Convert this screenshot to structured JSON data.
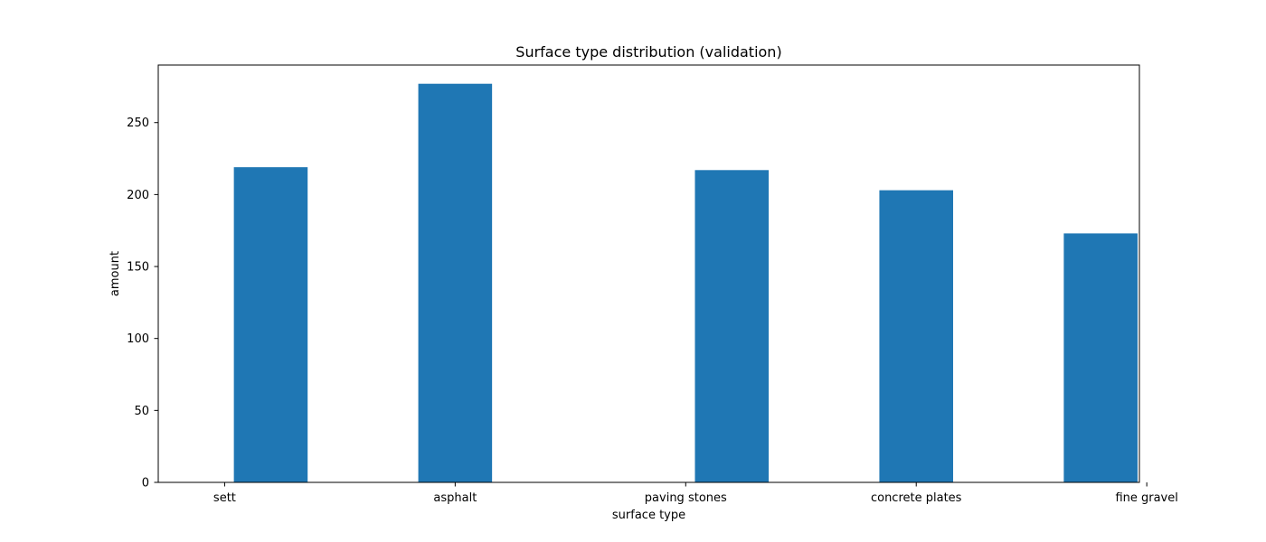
{
  "chart_data": {
    "type": "bar",
    "title": "Surface type distribution (validation)",
    "xlabel": "surface type",
    "ylabel": "amount",
    "ylim": [
      0,
      290
    ],
    "yticks": [
      0,
      50,
      100,
      150,
      200,
      250
    ],
    "xlim": [
      -0.36,
      4.96
    ],
    "grid": false,
    "bar_color": "#1f77b4",
    "bar_width": 0.4,
    "categories": [
      "sett",
      "asphalt",
      "paving stones",
      "concrete plates",
      "fine gravel"
    ],
    "tick_positions": [
      0,
      1.25,
      2.5,
      3.75,
      5
    ],
    "bars": [
      {
        "x": 0.25,
        "value": 219
      },
      {
        "x": 1.25,
        "value": 277
      },
      {
        "x": 2.75,
        "value": 217
      },
      {
        "x": 3.75,
        "value": 203
      },
      {
        "x": 4.75,
        "value": 173
      }
    ]
  }
}
